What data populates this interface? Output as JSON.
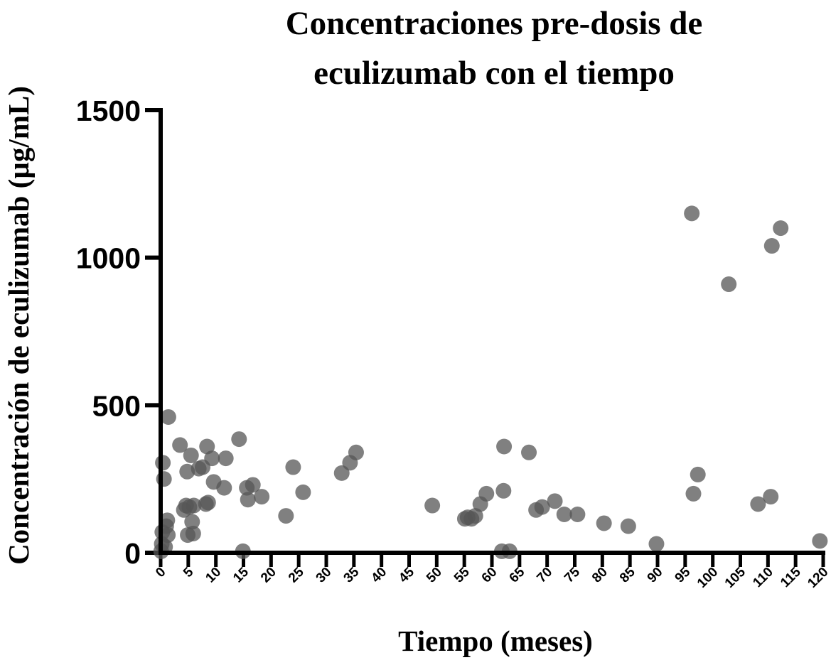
{
  "chart_data": {
    "type": "scatter",
    "title_lines": [
      "Concentraciones pre-dosis de",
      "eculizumab con el tiempo"
    ],
    "xlabel": "Tiempo (meses)",
    "ylabel": "Concentración de eculizumab (µg/mL)",
    "xlim": [
      0,
      120
    ],
    "ylim": [
      0,
      1500
    ],
    "x_ticks": [
      0,
      5,
      10,
      15,
      20,
      25,
      30,
      35,
      40,
      45,
      50,
      55,
      60,
      65,
      70,
      75,
      80,
      85,
      90,
      95,
      100,
      105,
      110,
      115,
      120
    ],
    "x_tick_labels": [
      "0",
      "5",
      "10",
      "15",
      "20",
      "25",
      "30",
      "35",
      "40",
      "45",
      "50",
      "55",
      "60",
      "65",
      "70",
      "75",
      "80",
      "85",
      "90",
      "95",
      "100",
      "105",
      "110",
      "115",
      "120"
    ],
    "y_ticks": [
      0,
      500,
      1000,
      1500
    ],
    "y_tick_labels": [
      "0",
      "500",
      "1000",
      "1500"
    ],
    "grid": false,
    "marker_color": "#555555",
    "marker_opacity": 0.75,
    "series": [
      {
        "points": [
          [
            0.1,
            5
          ],
          [
            0.2,
            30
          ],
          [
            0.3,
            70
          ],
          [
            0.4,
            305
          ],
          [
            0.6,
            250
          ],
          [
            0.8,
            20
          ],
          [
            1.0,
            90
          ],
          [
            1.2,
            110
          ],
          [
            1.3,
            60
          ],
          [
            1.4,
            460
          ],
          [
            3.5,
            365
          ],
          [
            4.2,
            145
          ],
          [
            4.6,
            160
          ],
          [
            4.8,
            275
          ],
          [
            4.9,
            60
          ],
          [
            5.2,
            155
          ],
          [
            5.5,
            330
          ],
          [
            5.7,
            105
          ],
          [
            5.9,
            65
          ],
          [
            6.0,
            160
          ],
          [
            6.9,
            285
          ],
          [
            7.6,
            290
          ],
          [
            8.2,
            165
          ],
          [
            8.4,
            360
          ],
          [
            8.6,
            170
          ],
          [
            9.3,
            320
          ],
          [
            9.6,
            240
          ],
          [
            11.5,
            220
          ],
          [
            11.8,
            320
          ],
          [
            14.2,
            385
          ],
          [
            14.9,
            5
          ],
          [
            15.6,
            220
          ],
          [
            15.8,
            180
          ],
          [
            16.7,
            230
          ],
          [
            18.3,
            190
          ],
          [
            22.7,
            125
          ],
          [
            24.0,
            290
          ],
          [
            25.8,
            205
          ],
          [
            32.8,
            270
          ],
          [
            34.3,
            305
          ],
          [
            35.4,
            340
          ],
          [
            49.2,
            160
          ],
          [
            55.1,
            115
          ],
          [
            55.6,
            120
          ],
          [
            56.3,
            115
          ],
          [
            57.0,
            125
          ],
          [
            57.9,
            165
          ],
          [
            59.0,
            200
          ],
          [
            61.8,
            5
          ],
          [
            62.2,
            360
          ],
          [
            62.1,
            210
          ],
          [
            63.2,
            5
          ],
          [
            66.7,
            340
          ],
          [
            68.0,
            145
          ],
          [
            69.1,
            155
          ],
          [
            71.4,
            175
          ],
          [
            73.1,
            130
          ],
          [
            75.5,
            130
          ],
          [
            80.3,
            100
          ],
          [
            84.7,
            90
          ],
          [
            89.8,
            30
          ],
          [
            96.2,
            1150
          ],
          [
            96.5,
            200
          ],
          [
            97.3,
            265
          ],
          [
            102.9,
            910
          ],
          [
            108.2,
            165
          ],
          [
            110.5,
            190
          ],
          [
            110.7,
            1040
          ],
          [
            112.3,
            1100
          ],
          [
            119.4,
            40
          ]
        ]
      }
    ]
  }
}
